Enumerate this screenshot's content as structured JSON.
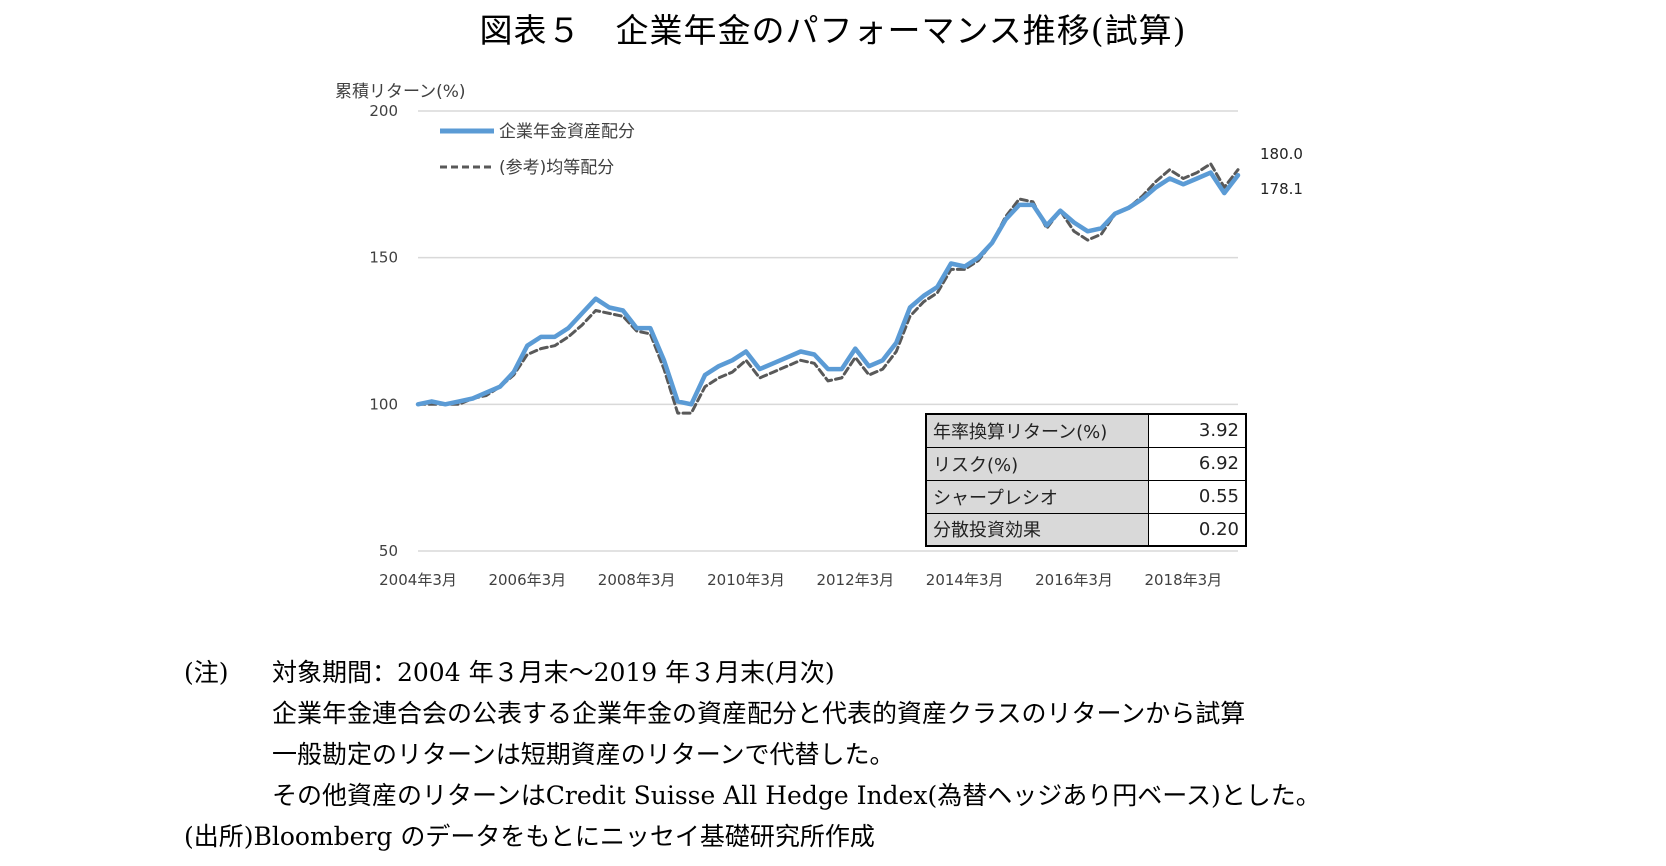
{
  "title": "図表５　企業年金のパフォーマンス推移(試算)",
  "chart_data": {
    "type": "line",
    "ylabel": "累積リターン(%)",
    "ylim": [
      50,
      200
    ],
    "yticks": [
      "50",
      "100",
      "150",
      "200"
    ],
    "xticks": [
      "2004年3月",
      "2006年3月",
      "2008年3月",
      "2010年3月",
      "2012年3月",
      "2014年3月",
      "2016年3月",
      "2018年3月"
    ],
    "x_range": [
      "2004-03",
      "2019-03"
    ],
    "grid": "horizontal",
    "legend_position": "top-left",
    "series": [
      {
        "name": "企業年金資産配分",
        "color": "#5b9bd5",
        "style": "solid",
        "end_label": "178.1",
        "points": [
          [
            "2004-03",
            100
          ],
          [
            "2004-06",
            101
          ],
          [
            "2004-09",
            100
          ],
          [
            "2004-12",
            101
          ],
          [
            "2005-03",
            102
          ],
          [
            "2005-06",
            104
          ],
          [
            "2005-09",
            106
          ],
          [
            "2005-12",
            111
          ],
          [
            "2006-03",
            120
          ],
          [
            "2006-06",
            123
          ],
          [
            "2006-09",
            123
          ],
          [
            "2006-12",
            126
          ],
          [
            "2007-03",
            131
          ],
          [
            "2007-06",
            136
          ],
          [
            "2007-09",
            133
          ],
          [
            "2007-12",
            132
          ],
          [
            "2008-03",
            126
          ],
          [
            "2008-06",
            126
          ],
          [
            "2008-09",
            115
          ],
          [
            "2008-12",
            101
          ],
          [
            "2009-03",
            100
          ],
          [
            "2009-06",
            110
          ],
          [
            "2009-09",
            113
          ],
          [
            "2009-12",
            115
          ],
          [
            "2010-03",
            118
          ],
          [
            "2010-06",
            112
          ],
          [
            "2010-09",
            114
          ],
          [
            "2010-12",
            116
          ],
          [
            "2011-03",
            118
          ],
          [
            "2011-06",
            117
          ],
          [
            "2011-09",
            112
          ],
          [
            "2011-12",
            112
          ],
          [
            "2012-03",
            119
          ],
          [
            "2012-06",
            113
          ],
          [
            "2012-09",
            115
          ],
          [
            "2012-12",
            121
          ],
          [
            "2013-03",
            133
          ],
          [
            "2013-06",
            137
          ],
          [
            "2013-09",
            140
          ],
          [
            "2013-12",
            148
          ],
          [
            "2014-03",
            147
          ],
          [
            "2014-06",
            150
          ],
          [
            "2014-09",
            155
          ],
          [
            "2014-12",
            163
          ],
          [
            "2015-03",
            168
          ],
          [
            "2015-06",
            168
          ],
          [
            "2015-09",
            161
          ],
          [
            "2015-12",
            166
          ],
          [
            "2016-03",
            162
          ],
          [
            "2016-06",
            159
          ],
          [
            "2016-09",
            160
          ],
          [
            "2016-12",
            165
          ],
          [
            "2017-03",
            167
          ],
          [
            "2017-06",
            170
          ],
          [
            "2017-09",
            174
          ],
          [
            "2017-12",
            177
          ],
          [
            "2018-03",
            175
          ],
          [
            "2018-06",
            177
          ],
          [
            "2018-09",
            179
          ],
          [
            "2018-12",
            172
          ],
          [
            "2019-03",
            178.1
          ]
        ]
      },
      {
        "name": "(参考)均等配分",
        "color": "#595959",
        "style": "dashed",
        "end_label": "180.0",
        "points": [
          [
            "2004-03",
            100
          ],
          [
            "2004-06",
            100
          ],
          [
            "2004-09",
            100
          ],
          [
            "2004-12",
            100
          ],
          [
            "2005-03",
            102
          ],
          [
            "2005-06",
            103
          ],
          [
            "2005-09",
            106
          ],
          [
            "2005-12",
            110
          ],
          [
            "2006-03",
            117
          ],
          [
            "2006-06",
            119
          ],
          [
            "2006-09",
            120
          ],
          [
            "2006-12",
            123
          ],
          [
            "2007-03",
            127
          ],
          [
            "2007-06",
            132
          ],
          [
            "2007-09",
            131
          ],
          [
            "2007-12",
            130
          ],
          [
            "2008-03",
            125
          ],
          [
            "2008-06",
            124
          ],
          [
            "2008-09",
            112
          ],
          [
            "2008-12",
            97
          ],
          [
            "2009-03",
            97
          ],
          [
            "2009-06",
            106
          ],
          [
            "2009-09",
            109
          ],
          [
            "2009-12",
            111
          ],
          [
            "2010-03",
            115
          ],
          [
            "2010-06",
            109
          ],
          [
            "2010-09",
            111
          ],
          [
            "2010-12",
            113
          ],
          [
            "2011-03",
            115
          ],
          [
            "2011-06",
            114
          ],
          [
            "2011-09",
            108
          ],
          [
            "2011-12",
            109
          ],
          [
            "2012-03",
            116
          ],
          [
            "2012-06",
            110
          ],
          [
            "2012-09",
            112
          ],
          [
            "2012-12",
            118
          ],
          [
            "2013-03",
            130
          ],
          [
            "2013-06",
            135
          ],
          [
            "2013-09",
            138
          ],
          [
            "2013-12",
            146
          ],
          [
            "2014-03",
            146
          ],
          [
            "2014-06",
            149
          ],
          [
            "2014-09",
            155
          ],
          [
            "2014-12",
            164
          ],
          [
            "2015-03",
            170
          ],
          [
            "2015-06",
            169
          ],
          [
            "2015-09",
            160
          ],
          [
            "2015-12",
            166
          ],
          [
            "2016-03",
            159
          ],
          [
            "2016-06",
            156
          ],
          [
            "2016-09",
            158
          ],
          [
            "2016-12",
            165
          ],
          [
            "2017-03",
            167
          ],
          [
            "2017-06",
            171
          ],
          [
            "2017-09",
            176
          ],
          [
            "2017-12",
            180
          ],
          [
            "2018-03",
            177
          ],
          [
            "2018-06",
            179
          ],
          [
            "2018-09",
            182
          ],
          [
            "2018-12",
            174
          ],
          [
            "2019-03",
            180.0
          ]
        ]
      }
    ]
  },
  "stats_table": [
    {
      "label": "年率換算リターン(%)",
      "value": "3.92"
    },
    {
      "label": "リスク(%)",
      "value": "6.92"
    },
    {
      "label": "シャープレシオ",
      "value": "0.55"
    },
    {
      "label": "分散投資効果",
      "value": "0.20"
    }
  ],
  "notes": {
    "note_head": "(注)",
    "note_lines": [
      "対象期間：2004 年３月末～2019 年３月末(月次)",
      "企業年金連合会の公表する企業年金の資産配分と代表的資産クラスのリターンから試算",
      "一般勘定のリターンは短期資産のリターンで代替した。",
      "その他資産のリターンはCredit Suisse All Hedge Index(為替ヘッジあり円ベース)とした。"
    ],
    "source": "(出所)Bloomberg のデータをもとにニッセイ基礎研究所作成"
  }
}
